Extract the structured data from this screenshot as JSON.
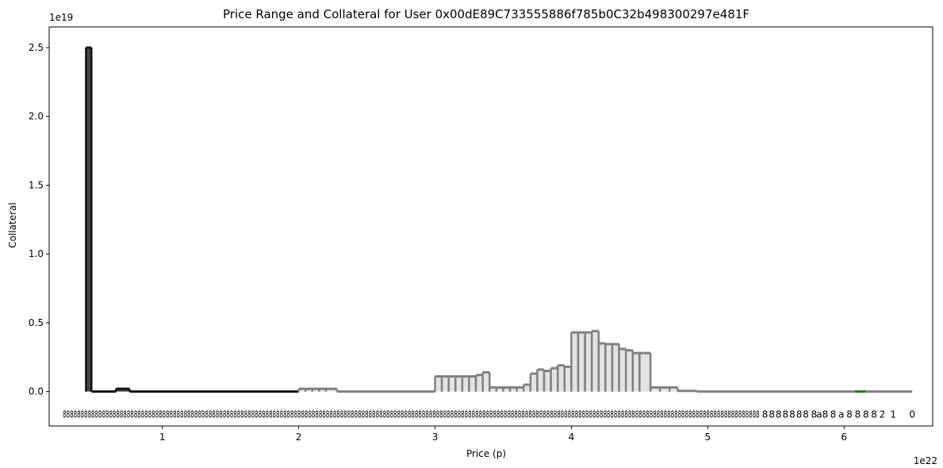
{
  "chart_data": {
    "type": "bar",
    "title": "Price Range and Collateral for User 0x00dE89C733555886f785b0C32b498300297e481F",
    "xlabel": "Price (p)",
    "ylabel": "Collateral",
    "x_multiplier": "1e22",
    "y_multiplier": "1e19",
    "x_ticks": [
      {
        "value": 1,
        "label": "1"
      },
      {
        "value": 2,
        "label": "2"
      },
      {
        "value": 3,
        "label": "3"
      },
      {
        "value": 4,
        "label": "4"
      },
      {
        "value": 5,
        "label": "5"
      },
      {
        "value": 6,
        "label": "6"
      }
    ],
    "y_ticks": [
      {
        "value": 0.0,
        "label": "0.0"
      },
      {
        "value": 0.5,
        "label": "0.5"
      },
      {
        "value": 1.0,
        "label": "1.0"
      },
      {
        "value": 1.5,
        "label": "1.5"
      },
      {
        "value": 2.0,
        "label": "2.0"
      },
      {
        "value": 2.5,
        "label": "2.5"
      }
    ],
    "xlim": [
      0.17,
      6.65
    ],
    "ylim": [
      -0.25,
      2.65
    ],
    "grid": false,
    "legend": "none",
    "colors": {
      "active": "#111111",
      "inactive_edge": "#808080",
      "inactive_fill": "#e3e3e3",
      "highlight": "#1a7a1a"
    },
    "bars": [
      {
        "x0": 0.44,
        "x1": 0.48,
        "y": 2.5,
        "style": "active"
      },
      {
        "x0": 0.48,
        "x1": 0.66,
        "y": 0.0,
        "style": "active"
      },
      {
        "x0": 0.66,
        "x1": 0.76,
        "y": 0.02,
        "style": "active"
      },
      {
        "x0": 0.76,
        "x1": 2.0,
        "y": 0.0,
        "style": "active"
      },
      {
        "x0": 2.0,
        "x1": 2.05,
        "y": 0.02,
        "style": "inactive"
      },
      {
        "x0": 2.05,
        "x1": 2.1,
        "y": 0.02,
        "style": "inactive"
      },
      {
        "x0": 2.1,
        "x1": 2.15,
        "y": 0.02,
        "style": "inactive"
      },
      {
        "x0": 2.15,
        "x1": 2.2,
        "y": 0.02,
        "style": "inactive"
      },
      {
        "x0": 2.2,
        "x1": 2.28,
        "y": 0.02,
        "style": "inactive"
      },
      {
        "x0": 2.28,
        "x1": 3.0,
        "y": 0.0,
        "style": "inactive"
      },
      {
        "x0": 3.0,
        "x1": 3.05,
        "y": 0.11,
        "style": "inactive"
      },
      {
        "x0": 3.05,
        "x1": 3.1,
        "y": 0.11,
        "style": "inactive"
      },
      {
        "x0": 3.1,
        "x1": 3.15,
        "y": 0.11,
        "style": "inactive"
      },
      {
        "x0": 3.15,
        "x1": 3.2,
        "y": 0.11,
        "style": "inactive"
      },
      {
        "x0": 3.2,
        "x1": 3.25,
        "y": 0.11,
        "style": "inactive"
      },
      {
        "x0": 3.25,
        "x1": 3.3,
        "y": 0.11,
        "style": "inactive"
      },
      {
        "x0": 3.3,
        "x1": 3.35,
        "y": 0.12,
        "style": "inactive"
      },
      {
        "x0": 3.35,
        "x1": 3.4,
        "y": 0.14,
        "style": "inactive"
      },
      {
        "x0": 3.4,
        "x1": 3.45,
        "y": 0.03,
        "style": "inactive"
      },
      {
        "x0": 3.45,
        "x1": 3.5,
        "y": 0.03,
        "style": "inactive"
      },
      {
        "x0": 3.5,
        "x1": 3.55,
        "y": 0.03,
        "style": "inactive"
      },
      {
        "x0": 3.55,
        "x1": 3.6,
        "y": 0.03,
        "style": "inactive"
      },
      {
        "x0": 3.6,
        "x1": 3.65,
        "y": 0.03,
        "style": "inactive"
      },
      {
        "x0": 3.65,
        "x1": 3.7,
        "y": 0.05,
        "style": "inactive"
      },
      {
        "x0": 3.7,
        "x1": 3.75,
        "y": 0.13,
        "style": "inactive"
      },
      {
        "x0": 3.75,
        "x1": 3.8,
        "y": 0.16,
        "style": "inactive"
      },
      {
        "x0": 3.8,
        "x1": 3.85,
        "y": 0.15,
        "style": "inactive"
      },
      {
        "x0": 3.85,
        "x1": 3.9,
        "y": 0.17,
        "style": "inactive"
      },
      {
        "x0": 3.9,
        "x1": 3.95,
        "y": 0.19,
        "style": "inactive"
      },
      {
        "x0": 3.95,
        "x1": 4.0,
        "y": 0.18,
        "style": "inactive"
      },
      {
        "x0": 4.0,
        "x1": 4.05,
        "y": 0.43,
        "style": "inactive"
      },
      {
        "x0": 4.05,
        "x1": 4.1,
        "y": 0.43,
        "style": "inactive"
      },
      {
        "x0": 4.1,
        "x1": 4.15,
        "y": 0.43,
        "style": "inactive"
      },
      {
        "x0": 4.15,
        "x1": 4.2,
        "y": 0.44,
        "style": "inactive"
      },
      {
        "x0": 4.2,
        "x1": 4.25,
        "y": 0.35,
        "style": "inactive"
      },
      {
        "x0": 4.25,
        "x1": 4.3,
        "y": 0.345,
        "style": "inactive"
      },
      {
        "x0": 4.3,
        "x1": 4.35,
        "y": 0.345,
        "style": "inactive"
      },
      {
        "x0": 4.35,
        "x1": 4.4,
        "y": 0.31,
        "style": "inactive"
      },
      {
        "x0": 4.4,
        "x1": 4.45,
        "y": 0.3,
        "style": "inactive"
      },
      {
        "x0": 4.45,
        "x1": 4.5,
        "y": 0.28,
        "style": "inactive"
      },
      {
        "x0": 4.5,
        "x1": 4.58,
        "y": 0.28,
        "style": "inactive"
      },
      {
        "x0": 4.58,
        "x1": 4.65,
        "y": 0.03,
        "style": "inactive"
      },
      {
        "x0": 4.65,
        "x1": 4.72,
        "y": 0.03,
        "style": "inactive"
      },
      {
        "x0": 4.72,
        "x1": 4.78,
        "y": 0.03,
        "style": "inactive"
      },
      {
        "x0": 4.78,
        "x1": 4.85,
        "y": 0.005,
        "style": "inactive"
      },
      {
        "x0": 4.85,
        "x1": 4.92,
        "y": 0.005,
        "style": "inactive"
      },
      {
        "x0": 4.92,
        "x1": 6.08,
        "y": 0.0,
        "style": "inactive"
      },
      {
        "x0": 6.08,
        "x1": 6.16,
        "y": 0.0,
        "style": "highlight"
      },
      {
        "x0": 6.16,
        "x1": 6.5,
        "y": 0.0,
        "style": "inactive"
      }
    ],
    "annotations": {
      "y": -0.16,
      "left_text": "8888888888888888888888888888888888888888888888888888888888888888888888888888888888888888888888888888888888888888888888888888888888888888888888888888888888888888888888888888888888888888888888888888",
      "left_x0": 0.27,
      "left_x1": 5.38,
      "right_items": [
        {
          "x": 5.42,
          "text": "8"
        },
        {
          "x": 5.47,
          "text": "8"
        },
        {
          "x": 5.52,
          "text": "8"
        },
        {
          "x": 5.57,
          "text": "8"
        },
        {
          "x": 5.62,
          "text": "8"
        },
        {
          "x": 5.67,
          "text": "8"
        },
        {
          "x": 5.72,
          "text": "8"
        },
        {
          "x": 5.78,
          "text": "8"
        },
        {
          "x": 5.84,
          "text": "a8"
        },
        {
          "x": 5.92,
          "text": "8"
        },
        {
          "x": 5.98,
          "text": "a"
        },
        {
          "x": 6.04,
          "text": "8"
        },
        {
          "x": 6.1,
          "text": "8"
        },
        {
          "x": 6.16,
          "text": "8"
        },
        {
          "x": 6.22,
          "text": "8"
        },
        {
          "x": 6.28,
          "text": "2"
        },
        {
          "x": 6.36,
          "text": "1"
        },
        {
          "x": 6.5,
          "text": "0"
        }
      ]
    }
  }
}
